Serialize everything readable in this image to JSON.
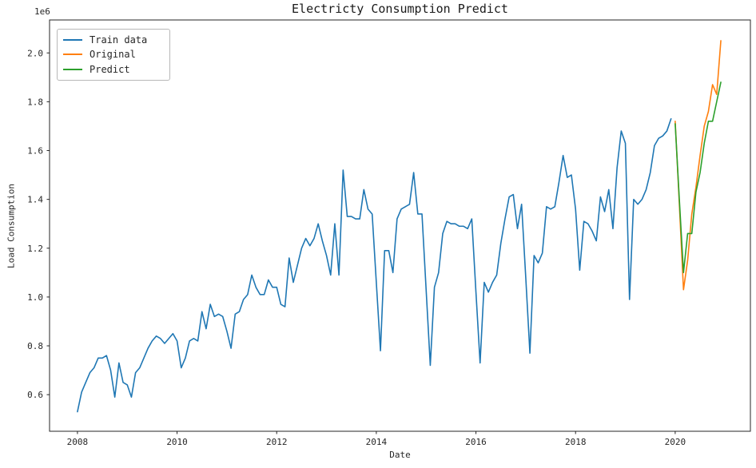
{
  "chart_data": {
    "type": "line",
    "title": "Electricty Consumption Predict",
    "xlabel": "Date",
    "ylabel": "Load Consumption",
    "y_offset_label": "1e6",
    "grid": false,
    "legend_position": "upper left",
    "x_tick_labels": [
      "2008",
      "2010",
      "2012",
      "2014",
      "2016",
      "2018",
      "2020"
    ],
    "y_tick_labels": [
      "0.6",
      "0.8",
      "1.0",
      "1.2",
      "1.4",
      "1.6",
      "1.8",
      "2.0"
    ],
    "xlim": [
      2007.44,
      2021.51
    ],
    "ylim": [
      0.45,
      2.135
    ],
    "value_units": "1e6 (values below are in millions)",
    "x_unit": "monthly samples, x = year + (month-1)/12",
    "series": [
      {
        "name": "Train data",
        "color": "#1f77b4",
        "start_year": 2008,
        "start_month": 1,
        "values": [
          0.53,
          0.61,
          0.65,
          0.69,
          0.71,
          0.75,
          0.75,
          0.76,
          0.7,
          0.59,
          0.73,
          0.65,
          0.64,
          0.59,
          0.69,
          0.71,
          0.75,
          0.79,
          0.82,
          0.84,
          0.83,
          0.81,
          0.83,
          0.85,
          0.82,
          0.71,
          0.75,
          0.82,
          0.83,
          0.82,
          0.94,
          0.87,
          0.97,
          0.92,
          0.93,
          0.92,
          0.86,
          0.79,
          0.93,
          0.94,
          0.99,
          1.01,
          1.09,
          1.04,
          1.01,
          1.01,
          1.07,
          1.04,
          1.04,
          0.97,
          0.96,
          1.16,
          1.06,
          1.13,
          1.2,
          1.24,
          1.21,
          1.24,
          1.3,
          1.23,
          1.17,
          1.09,
          1.3,
          1.09,
          1.52,
          1.33,
          1.33,
          1.32,
          1.32,
          1.44,
          1.36,
          1.34,
          1.06,
          0.78,
          1.19,
          1.19,
          1.1,
          1.32,
          1.36,
          1.37,
          1.38,
          1.51,
          1.34,
          1.34,
          1.03,
          0.72,
          1.04,
          1.1,
          1.26,
          1.31,
          1.3,
          1.3,
          1.29,
          1.29,
          1.28,
          1.32,
          1.02,
          0.73,
          1.06,
          1.02,
          1.06,
          1.09,
          1.22,
          1.32,
          1.41,
          1.42,
          1.28,
          1.38,
          1.08,
          0.77,
          1.17,
          1.14,
          1.18,
          1.37,
          1.36,
          1.37,
          1.47,
          1.58,
          1.49,
          1.5,
          1.36,
          1.11,
          1.31,
          1.3,
          1.27,
          1.23,
          1.41,
          1.35,
          1.44,
          1.28,
          1.53,
          1.68,
          1.63,
          0.99,
          1.4,
          1.38,
          1.4,
          1.44,
          1.51,
          1.62,
          1.65,
          1.66,
          1.68,
          1.73
        ]
      },
      {
        "name": "Original",
        "color": "#ff7f0e",
        "start_year": 2020,
        "start_month": 1,
        "values": [
          1.72,
          1.38,
          1.03,
          1.15,
          1.34,
          1.45,
          1.58,
          1.7,
          1.76,
          1.87,
          1.83,
          2.05
        ]
      },
      {
        "name": "Predict",
        "color": "#2ca02c",
        "start_year": 2020,
        "start_month": 1,
        "values": [
          1.71,
          1.4,
          1.1,
          1.26,
          1.26,
          1.43,
          1.51,
          1.63,
          1.72,
          1.72,
          1.8,
          1.88
        ]
      }
    ]
  }
}
